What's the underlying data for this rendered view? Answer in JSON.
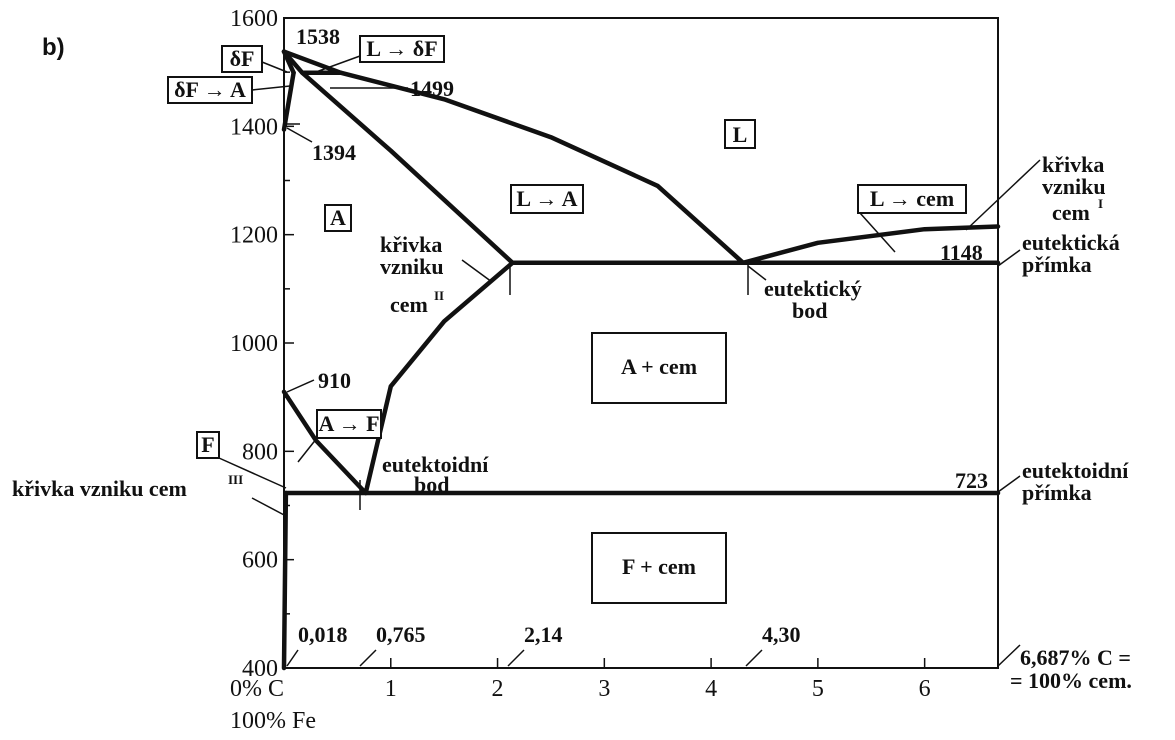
{
  "panel_label": "b)",
  "chart_data": {
    "type": "line",
    "title": "",
    "xlabel": "",
    "ylabel": "",
    "xlim": [
      0,
      6.687
    ],
    "ylim": [
      400,
      1600
    ],
    "y_ticks": [
      "400",
      "600",
      "800",
      "1000",
      "1200",
      "1400",
      "1600"
    ],
    "x_ticks": [
      "1",
      "2",
      "3",
      "4",
      "5",
      "6"
    ],
    "x_origin_label": [
      "0% C",
      "100% Fe"
    ],
    "x_end_label": [
      "6,687% C =",
      "= 100% cem."
    ],
    "series": [
      {
        "values": [
          [
            0,
            1538
          ],
          [
            0.17,
            1499
          ],
          [
            0.53,
            1499
          ]
        ]
      },
      {
        "values": [
          [
            0,
            1538
          ],
          [
            0.53,
            1499
          ],
          [
            1.5,
            1450
          ],
          [
            2.5,
            1380
          ],
          [
            3.5,
            1290
          ],
          [
            4.3,
            1148
          ]
        ]
      },
      {
        "values": [
          [
            4.3,
            1148
          ],
          [
            5.0,
            1185
          ],
          [
            6.0,
            1210
          ],
          [
            6.687,
            1215
          ]
        ]
      },
      {
        "values": [
          [
            0,
            1538
          ],
          [
            0.09,
            1499
          ]
        ]
      },
      {
        "values": [
          [
            0,
            1394
          ],
          [
            0.09,
            1499
          ]
        ]
      },
      {
        "values": [
          [
            0.17,
            1499
          ],
          [
            1.0,
            1355
          ],
          [
            2.14,
            1148
          ]
        ]
      },
      {
        "values": [
          [
            2.14,
            1148
          ],
          [
            1.5,
            1040
          ],
          [
            1.0,
            920
          ],
          [
            0.765,
            723
          ]
        ]
      },
      {
        "values": [
          [
            0,
            910
          ],
          [
            0.3,
            820
          ],
          [
            0.765,
            723
          ]
        ]
      },
      {
        "values": [
          [
            0,
            400
          ],
          [
            0.018,
            723
          ]
        ]
      },
      {
        "values": [
          [
            2.14,
            1148
          ],
          [
            6.687,
            1148
          ]
        ]
      },
      {
        "values": [
          [
            0.018,
            723
          ],
          [
            6.687,
            723
          ]
        ]
      }
    ],
    "annotations": {
      "temperatures": [
        "1538",
        "1499",
        "1394",
        "910",
        "1148",
        "723"
      ],
      "compositions": [
        "0,018",
        "0,765",
        "2,14",
        "4,30"
      ],
      "phase_boxes": [
        "δF",
        "δF → A",
        "L → δF",
        "L",
        "L → A",
        "L → cem",
        "A",
        "A → F",
        "F",
        "A + cem",
        "F + cem"
      ],
      "labels": {
        "cem1_curve": [
          "křivka",
          "vzniku",
          "cem",
          "I"
        ],
        "cem2_curve": [
          "křivka",
          "vzniku",
          "cem",
          "II"
        ],
        "cem3_curve": [
          "křivka vzniku cem",
          "III"
        ],
        "eutectic_point": [
          "eutektický",
          "bod"
        ],
        "eutectic_line": [
          "eutektická",
          "přímka"
        ],
        "eutectoid_point": [
          "eutektoidní",
          "bod"
        ],
        "eutectoid_line": [
          "eutektoidní",
          "přímka"
        ]
      }
    }
  }
}
